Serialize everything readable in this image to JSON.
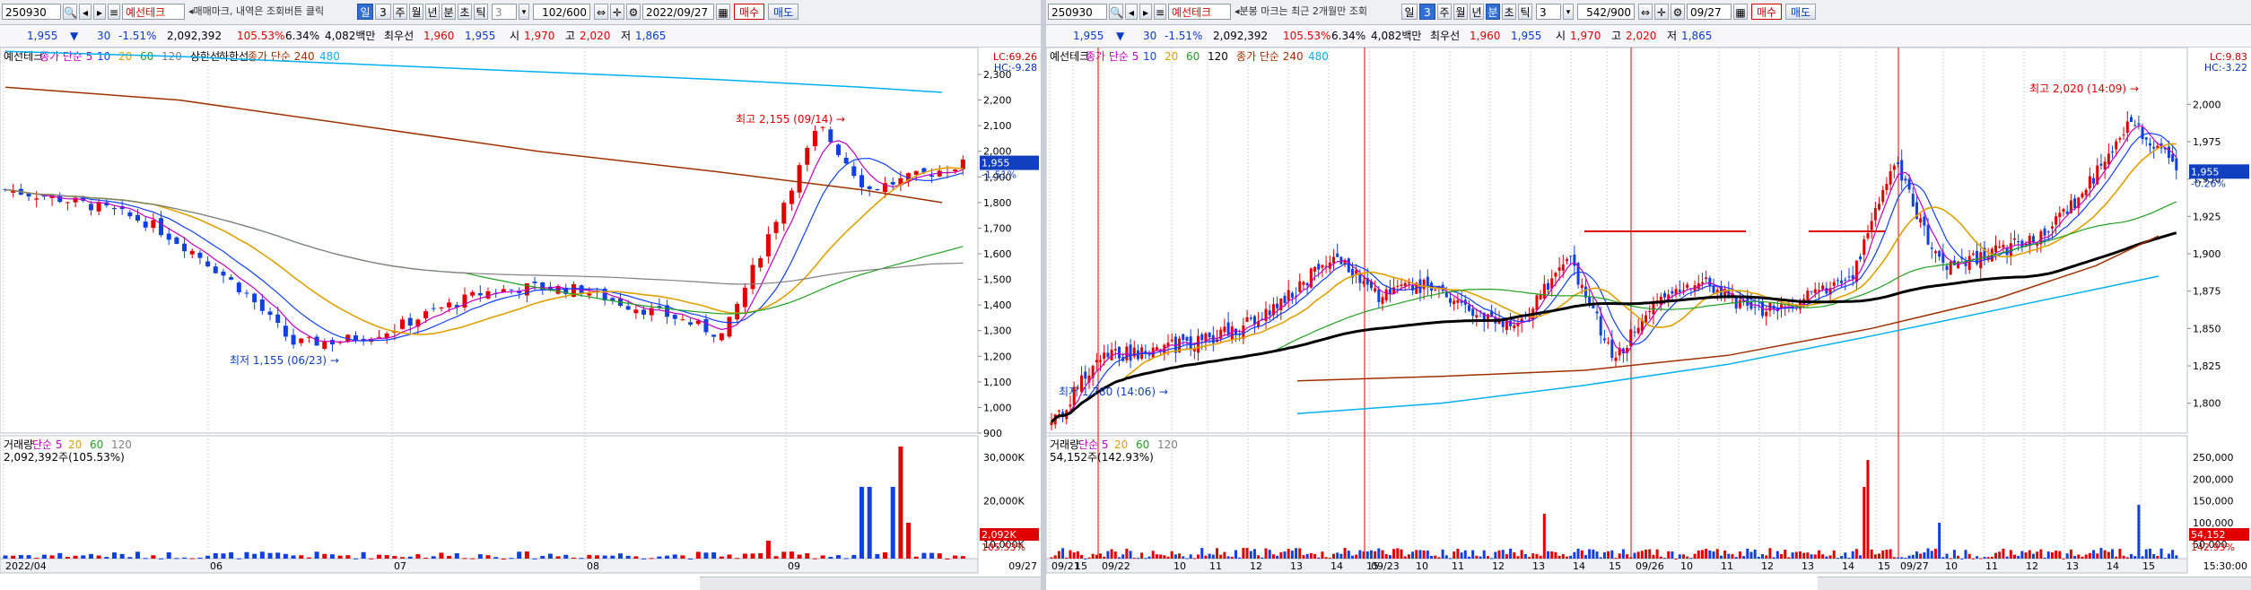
{
  "left": {
    "code": "250930",
    "name": "예선테크",
    "notice": "매매마크, 내역은 조회버튼 클릭",
    "period_label": "일",
    "period_num": "3",
    "periods": [
      "주",
      "월",
      "년",
      "분",
      "초",
      "틱"
    ],
    "tick_count": "3",
    "range": "102/600",
    "date": "2022/09/27",
    "buy": "매수",
    "sell": "매도",
    "quote": {
      "price": "1,955",
      "change": "30",
      "pct": "-1.51%",
      "volume": "2,092,392",
      "ratio": "105.53%",
      "turnover": "6.34%",
      "amount": "4,082백만",
      "best_label": "최우선",
      "bid": "1,960",
      "ask": "1,955",
      "open_label": "시",
      "open": "1,970",
      "high_label": "고",
      "high": "2,020",
      "low_label": "저",
      "low": "1,865"
    },
    "legend_price": [
      {
        "text": "예선테크",
        "color": "#000000"
      },
      {
        "text": "종가 단순 5",
        "color": "#c000c0"
      },
      {
        "text": "10",
        "color": "#1040ff"
      },
      {
        "text": "20",
        "color": "#e0a000"
      },
      {
        "text": "60",
        "color": "#20a020"
      },
      {
        "text": "120",
        "color": "#808080"
      },
      {
        "text": "상한선",
        "color": "#000000"
      },
      {
        "text": "하한선",
        "color": "#000000"
      },
      {
        "text": "종가 단순 240",
        "color": "#a03000"
      },
      {
        "text": "480",
        "color": "#00b0f0"
      }
    ],
    "lc": "LC:69.26",
    "hc": "HC:-9.28",
    "yticks": [
      "2,300",
      "2,200",
      "2,100",
      "2,000",
      "1,900",
      "1,800",
      "1,700",
      "1,600",
      "1,500",
      "1,400",
      "1,300",
      "1,200",
      "1,100",
      "1,000",
      "900"
    ],
    "last_price": "1,955",
    "last_pct": "-1.51%",
    "max_label": "최고 2,155 (09/14)",
    "min_label": "최저 1,155 (06/23)",
    "legend_vol": [
      {
        "text": "거래량",
        "color": "#000000"
      },
      {
        "text": "단순 5",
        "color": "#c000c0"
      },
      {
        "text": "20",
        "color": "#e0a000"
      },
      {
        "text": "60",
        "color": "#20a020"
      },
      {
        "text": "120",
        "color": "#808080"
      }
    ],
    "vol_info": "2,092,392주(105.53%)",
    "vol_yticks": [
      "30,000K",
      "20,000K",
      "10,000K"
    ],
    "vol_last": "2,092K",
    "vol_last_pct": "105.53%",
    "xlabels": [
      "2022/04",
      "06",
      "07",
      "08",
      "09"
    ],
    "x_end": "09/27"
  },
  "right": {
    "code": "250930",
    "name": "예선테크",
    "notice": "분봉 마크는 최근 2개월만 조회",
    "period_label": "일",
    "period_num": "3",
    "periods": [
      "주",
      "월",
      "년",
      "분",
      "초",
      "틱"
    ],
    "tick_count": "3",
    "range": "542/900",
    "date": "09/27",
    "buy": "매수",
    "sell": "매도",
    "quote": {
      "price": "1,955",
      "change": "30",
      "pct": "-1.51%",
      "volume": "2,092,392",
      "ratio": "105.53%",
      "turnover": "6.34%",
      "amount": "4,082백만",
      "best_label": "최우선",
      "bid": "1,960",
      "ask": "1,955",
      "open_label": "시",
      "open": "1,970",
      "high_label": "고",
      "high": "2,020",
      "low_label": "저",
      "low": "1,865"
    },
    "legend_price": [
      {
        "text": "예선테크",
        "color": "#000000"
      },
      {
        "text": "종가 단순 5",
        "color": "#c000c0"
      },
      {
        "text": "10",
        "color": "#1040ff"
      },
      {
        "text": "20",
        "color": "#e0a000"
      },
      {
        "text": "60",
        "color": "#20a020"
      },
      {
        "text": "120",
        "color": "#000000"
      },
      {
        "text": "종가 단순 240",
        "color": "#a03000"
      },
      {
        "text": "480",
        "color": "#00b0f0"
      }
    ],
    "lc": "LC:9.83",
    "hc": "HC:-3.22",
    "yticks": [
      "2,000",
      "1,975",
      "1,950",
      "1,925",
      "1,900",
      "1,875",
      "1,850",
      "1,825",
      "1,800"
    ],
    "last_price": "1,955",
    "last_pct": "-0.26%",
    "max_label": "최고 2,020 (14:09)",
    "min_label": "최저 1,780 (14:06)",
    "legend_vol": [
      {
        "text": "거래량",
        "color": "#000000"
      },
      {
        "text": "단순 5",
        "color": "#c000c0"
      },
      {
        "text": "20",
        "color": "#e0a000"
      },
      {
        "text": "60",
        "color": "#20a020"
      },
      {
        "text": "120",
        "color": "#808080"
      }
    ],
    "vol_info": "54,152주(142.93%)",
    "vol_yticks": [
      "250,000",
      "200,000",
      "150,000",
      "100,000",
      "50,000"
    ],
    "vol_last": "54,152",
    "vol_last_pct": "142.93%",
    "xlabels": [
      "09/21",
      "15",
      "09/22",
      "10",
      "11",
      "12",
      "13",
      "14",
      "15",
      "09/23",
      "10",
      "11",
      "12",
      "13",
      "14",
      "15",
      "09/26",
      "10",
      "11",
      "12",
      "13",
      "14",
      "15",
      "09/27",
      "10",
      "11",
      "12",
      "13",
      "14",
      "15"
    ],
    "x_end": "15:30:00"
  },
  "colors": {
    "up": "#e00000",
    "down": "#1040e0",
    "ma5": "#c000c0",
    "ma10": "#1040ff",
    "ma20": "#e0a000",
    "ma60": "#20a020",
    "ma120": "#808080",
    "ma240": "#a03000",
    "ma480": "#00b0f0"
  }
}
